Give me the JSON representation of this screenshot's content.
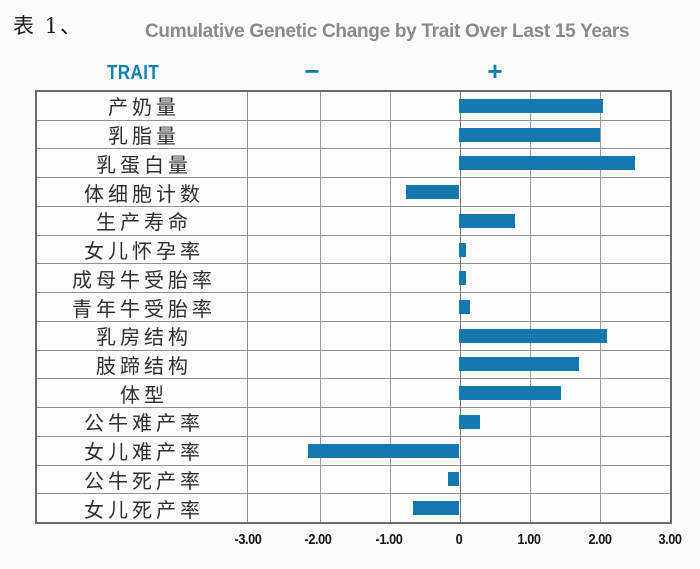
{
  "caption": "表 1、",
  "title": "Cumulative Genetic Change by Trait Over Last 15 Years",
  "header": {
    "trait_label": "TRAIT",
    "minus_label": "−",
    "plus_label": "+"
  },
  "colors": {
    "bar": "#1278ae",
    "accent": "#0e7fb2",
    "title_text": "#8a8a8a",
    "grid": "#9a9a9a",
    "outer_border": "#6b6b6b"
  },
  "chart_data": {
    "type": "bar",
    "orientation": "horizontal",
    "title": "Cumulative Genetic Change by Trait Over Last 15 Years",
    "categories": [
      "产奶量",
      "乳脂量",
      "乳蛋白量",
      "体细胞计数",
      "生产寿命",
      "女儿怀孕率",
      "成母牛受胎率",
      "青年牛受胎率",
      "乳房结构",
      "肢蹄结构",
      "体型",
      "公牛难产率",
      "女儿难产率",
      "公牛死产率",
      "女儿死产率"
    ],
    "values": [
      2.05,
      2.0,
      2.5,
      -0.75,
      0.8,
      0.1,
      0.1,
      0.15,
      2.1,
      1.7,
      1.45,
      0.3,
      -2.15,
      -0.15,
      -0.65
    ],
    "xlim": [
      -3,
      3
    ],
    "x_ticks": [
      -3,
      -2,
      -1,
      0,
      1,
      2,
      3
    ],
    "x_tick_labels": [
      "-3.00",
      "-2.00",
      "-1.00",
      "0",
      "1.00",
      "2.00",
      "3.00"
    ],
    "grid": true,
    "legend": "none",
    "bar_color": "#1278ae"
  }
}
